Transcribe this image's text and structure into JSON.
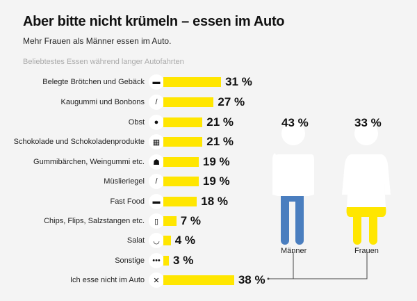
{
  "title": "Aber bitte nicht krümeln – essen im Auto",
  "subtitle": "Mehr Frauen als Männer essen im Auto.",
  "chart_data": {
    "type": "bar",
    "title": "Beliebtestes Essen während langer Autofahrten",
    "unit": "%",
    "categories": [
      "Belegte Brötchen und Gebäck",
      "Kaugummi und Bonbons",
      "Obst",
      "Schokolade und Schokoladenprodukte",
      "Gummibärchen, Weingummi etc.",
      "Müslieriegel",
      "Fast Food",
      "Chips, Flips, Salzstangen etc.",
      "Salat",
      "Sonstige",
      "Ich esse nicht im Auto"
    ],
    "icons": [
      "burger-icon",
      "candy-icon",
      "apple-icon",
      "chocolate-icon",
      "gummy-bear-icon",
      "cereal-bar-icon",
      "fast-food-icon",
      "chips-icon",
      "salad-icon",
      "dots-icon",
      "cross-icon"
    ],
    "values": [
      31,
      27,
      21,
      21,
      19,
      19,
      18,
      7,
      4,
      3,
      38
    ],
    "bar_color": "#ffe600",
    "breakdown": {
      "source_category": "Ich esse nicht im Auto",
      "groups": [
        {
          "label": "Männer",
          "value": 43,
          "color": "#4a7ebf"
        },
        {
          "label": "Frauen",
          "value": 33,
          "color": "#ffe600"
        }
      ]
    }
  }
}
